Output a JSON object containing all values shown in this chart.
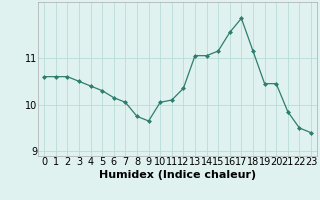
{
  "x": [
    0,
    1,
    2,
    3,
    4,
    5,
    6,
    7,
    8,
    9,
    10,
    11,
    12,
    13,
    14,
    15,
    16,
    17,
    18,
    19,
    20,
    21,
    22,
    23
  ],
  "y": [
    10.6,
    10.6,
    10.6,
    10.5,
    10.4,
    10.3,
    10.15,
    10.05,
    9.75,
    9.65,
    10.05,
    10.1,
    10.35,
    11.05,
    11.05,
    11.15,
    11.55,
    11.85,
    11.15,
    10.45,
    10.45,
    9.85,
    9.5,
    9.4
  ],
  "xlabel": "Humidex (Indice chaleur)",
  "yticks": [
    9,
    10,
    11
  ],
  "xticks": [
    0,
    1,
    2,
    3,
    4,
    5,
    6,
    7,
    8,
    9,
    10,
    11,
    12,
    13,
    14,
    15,
    16,
    17,
    18,
    19,
    20,
    21,
    22,
    23
  ],
  "ylim": [
    8.9,
    12.2
  ],
  "xlim": [
    -0.5,
    23.5
  ],
  "line_color": "#2e7d6e",
  "marker_color": "#2e7d6e",
  "bg_color": "#dff2f0",
  "grid_color": "#b8dcd8",
  "xlabel_fontsize": 8,
  "tick_fontsize": 7
}
